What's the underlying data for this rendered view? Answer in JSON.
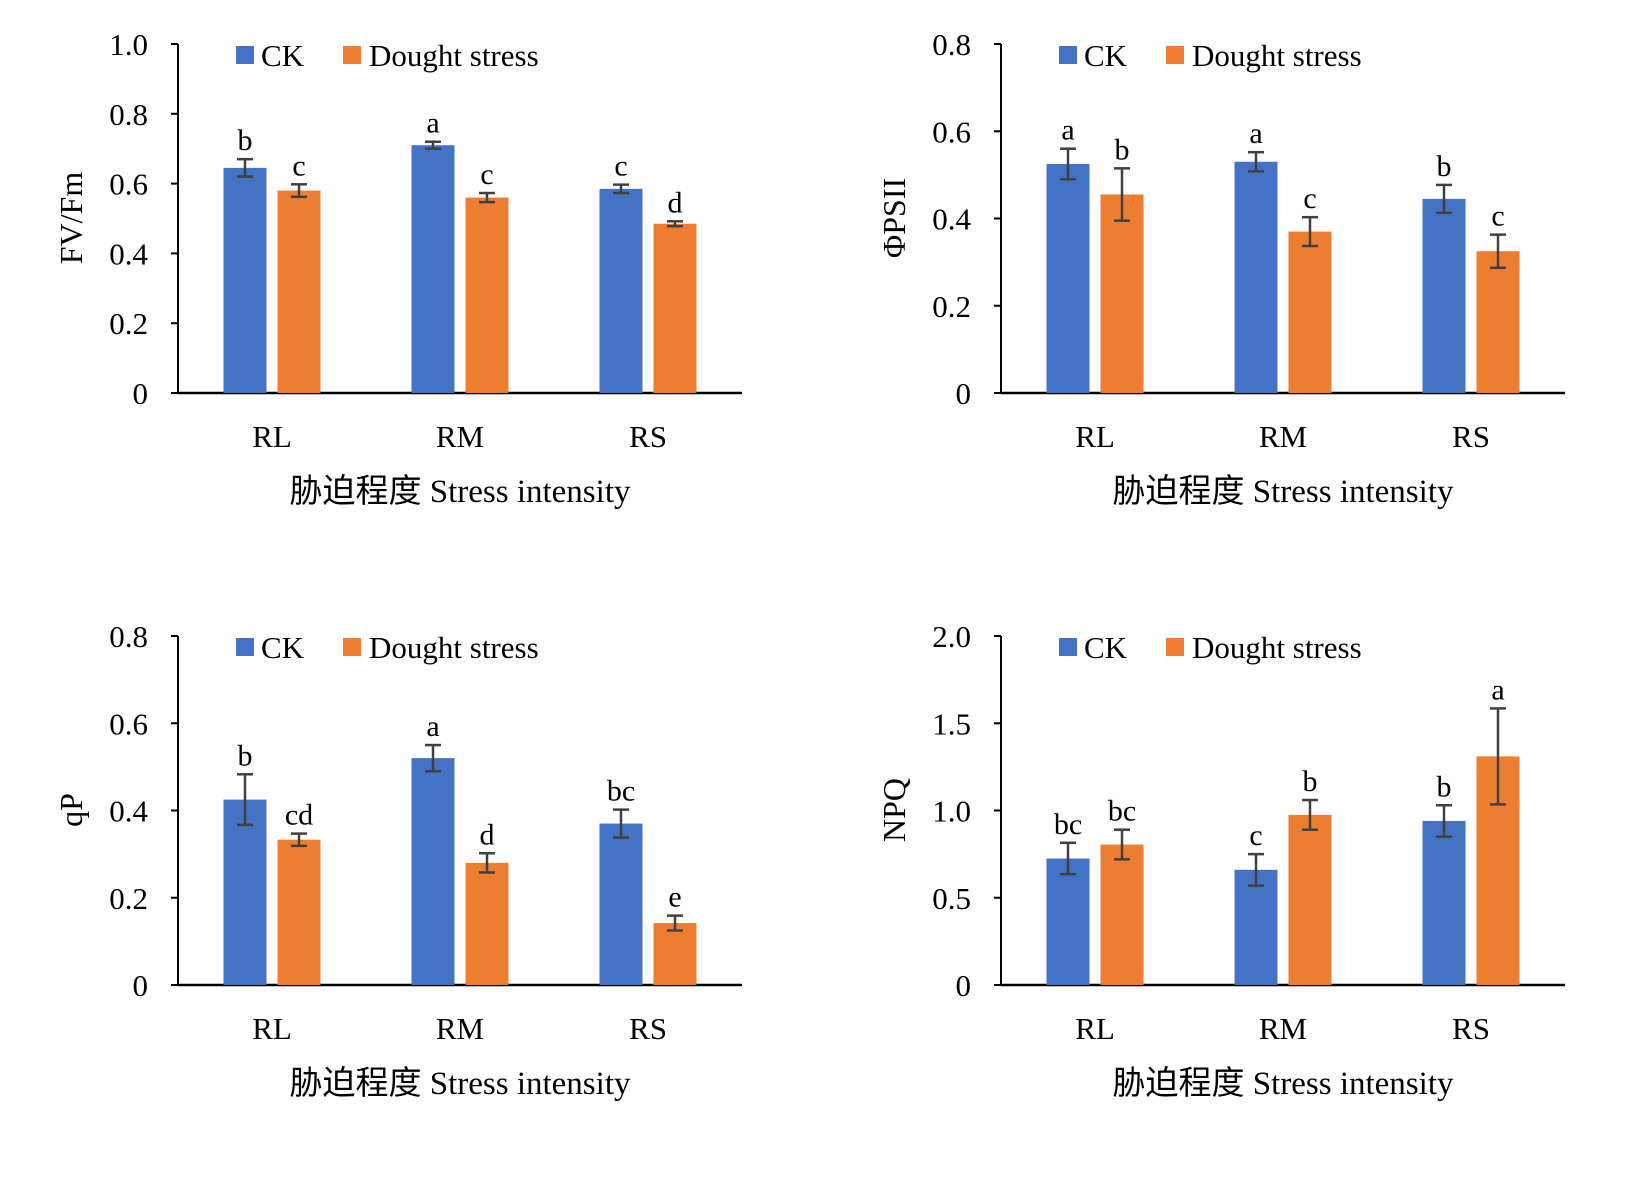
{
  "colors": {
    "ck": "#4472C4",
    "drought": "#ED7D31",
    "axis": "#000000",
    "errorbar": "#404040"
  },
  "chart_data": [
    {
      "type": "bar",
      "ylabel": "FV/Fm",
      "xlabel": "胁迫程度  Stress intensity",
      "categories": [
        "RL",
        "RM",
        "RS"
      ],
      "ylim": [
        0,
        1.0
      ],
      "yticks": [
        0,
        0.2,
        0.4,
        0.6,
        0.8,
        1.0
      ],
      "yticklabels": [
        "0",
        "0.2",
        "0.4",
        "0.6",
        "0.8",
        "1.0"
      ],
      "legend": [
        "CK",
        "Dought stress"
      ],
      "legend_position": "top",
      "series": [
        {
          "name": "CK",
          "values": [
            0.645,
            0.71,
            0.585
          ],
          "errors": [
            0.025,
            0.01,
            0.012
          ],
          "letters": [
            "b",
            "a",
            "c"
          ]
        },
        {
          "name": "Dought stress",
          "values": [
            0.58,
            0.56,
            0.485
          ],
          "errors": [
            0.018,
            0.013,
            0.007
          ],
          "letters": [
            "c",
            "c",
            "d"
          ]
        }
      ]
    },
    {
      "type": "bar",
      "ylabel": "ΦPSII",
      "xlabel": "胁迫程度  Stress intensity",
      "categories": [
        "RL",
        "RM",
        "RS"
      ],
      "ylim": [
        0,
        0.8
      ],
      "yticks": [
        0,
        0.2,
        0.4,
        0.6,
        0.8
      ],
      "yticklabels": [
        "0",
        "0.2",
        "0.4",
        "0.6",
        "0.8"
      ],
      "legend": [
        "CK",
        "Dought stress"
      ],
      "legend_position": "top",
      "series": [
        {
          "name": "CK",
          "values": [
            0.525,
            0.53,
            0.445
          ],
          "errors": [
            0.035,
            0.022,
            0.032
          ],
          "letters": [
            "a",
            "a",
            "b"
          ]
        },
        {
          "name": "Dought stress",
          "values": [
            0.455,
            0.37,
            0.325
          ],
          "errors": [
            0.06,
            0.033,
            0.038
          ],
          "letters": [
            "b",
            "c",
            "c"
          ]
        }
      ]
    },
    {
      "type": "bar",
      "ylabel": "qP",
      "xlabel": "胁迫程度  Stress intensity",
      "categories": [
        "RL",
        "RM",
        "RS"
      ],
      "ylim": [
        0,
        0.8
      ],
      "yticks": [
        0,
        0.2,
        0.4,
        0.6,
        0.8
      ],
      "yticklabels": [
        "0",
        "0.2",
        "0.4",
        "0.6",
        "0.8"
      ],
      "legend": [
        "CK",
        "Dought stress"
      ],
      "legend_position": "top",
      "series": [
        {
          "name": "CK",
          "values": [
            0.425,
            0.52,
            0.37
          ],
          "errors": [
            0.058,
            0.03,
            0.032
          ],
          "letters": [
            "b",
            "a",
            "bc"
          ]
        },
        {
          "name": "Dought stress",
          "values": [
            0.333,
            0.28,
            0.142
          ],
          "errors": [
            0.014,
            0.022,
            0.017
          ],
          "letters": [
            "cd",
            "d",
            "e"
          ]
        }
      ]
    },
    {
      "type": "bar",
      "ylabel": "NPQ",
      "xlabel": "胁迫程度  Stress intensity",
      "categories": [
        "RL",
        "RM",
        "RS"
      ],
      "ylim": [
        0,
        2.0
      ],
      "yticks": [
        0,
        0.5,
        1.0,
        1.5,
        2.0
      ],
      "yticklabels": [
        "0",
        "0.5",
        "1.0",
        "1.5",
        "2.0"
      ],
      "legend": [
        "CK",
        "Dought stress"
      ],
      "legend_position": "top",
      "series": [
        {
          "name": "CK",
          "values": [
            0.725,
            0.66,
            0.94
          ],
          "errors": [
            0.09,
            0.09,
            0.09
          ],
          "letters": [
            "bc",
            "c",
            "b"
          ]
        },
        {
          "name": "Dought stress",
          "values": [
            0.805,
            0.975,
            1.31
          ],
          "errors": [
            0.085,
            0.085,
            0.275
          ],
          "letters": [
            "bc",
            "b",
            "a"
          ]
        }
      ]
    }
  ]
}
